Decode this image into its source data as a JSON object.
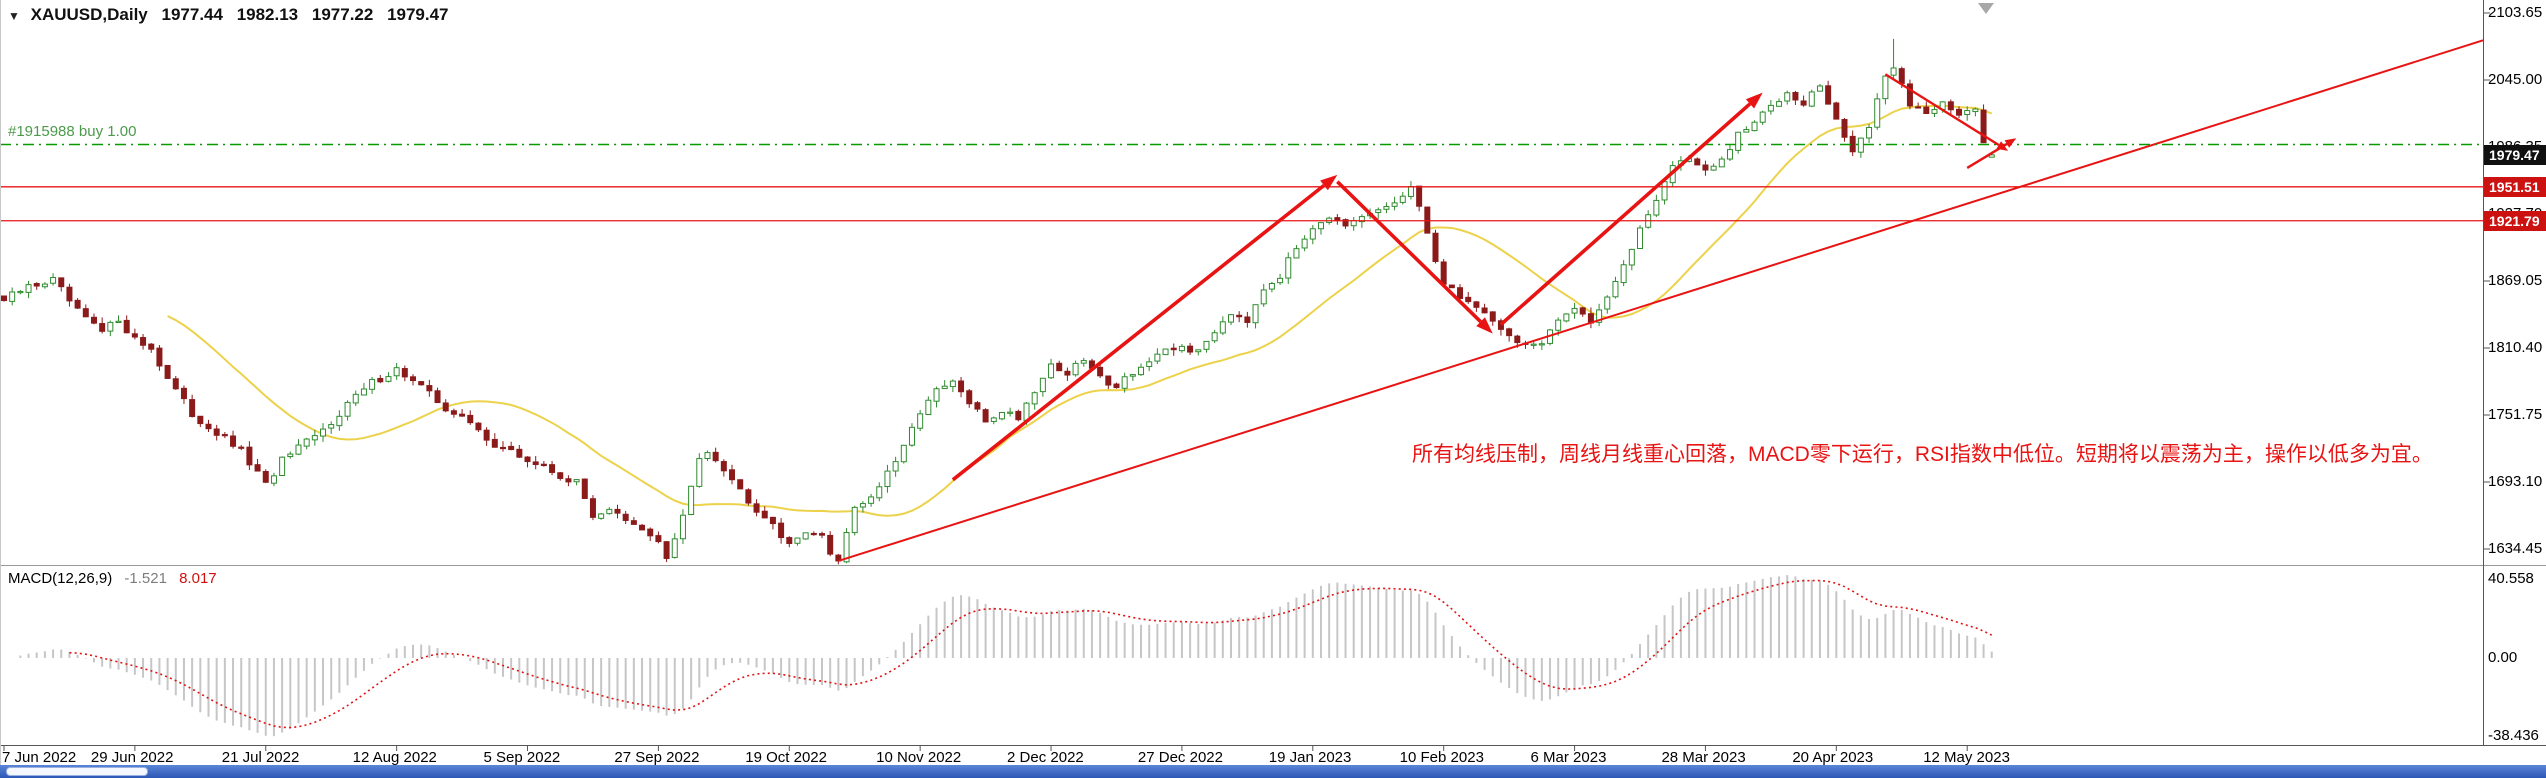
{
  "quote": {
    "collapse_icon": "▼",
    "symbol_period": "XAUUSD,Daily",
    "open": "1977.44",
    "high": "1982.13",
    "low": "1977.22",
    "close": "1979.47"
  },
  "position": {
    "label": "#1915988 buy 1.00",
    "price": 1988.5
  },
  "annotation": {
    "text": "所有均线压制，周线月线重心回落，MACD零下运行，RSI指数中低位。短期将以震荡为主，操作以低多为宜。"
  },
  "price_axis": {
    "labels": [
      "2103.65",
      "2045.00",
      "1986.35",
      "1927.70",
      "1869.05",
      "1810.40",
      "1751.75",
      "1693.10",
      "1634.45"
    ]
  },
  "date_axis": {
    "labels": [
      "7 Jun 2022",
      "29 Jun 2022",
      "21 Jul 2022",
      "12 Aug 2022",
      "5 Sep 2022",
      "27 Sep 2022",
      "19 Oct 2022",
      "10 Nov 2022",
      "2 Dec 2022",
      "27 Dec 2022",
      "19 Jan 2023",
      "10 Feb 2023",
      "6 Mar 2023",
      "28 Mar 2023",
      "20 Apr 2023",
      "12 May 2023"
    ]
  },
  "badges": [
    {
      "text": "1979.47",
      "price": 1979.47,
      "bg": "#101010"
    },
    {
      "text": "1951.51",
      "price": 1951.51,
      "bg": "#cc1111"
    },
    {
      "text": "1921.79",
      "price": 1921.79,
      "bg": "#cc1111"
    }
  ],
  "macd": {
    "label": "MACD(12,26,9)",
    "main_value": "-1.521",
    "signal_value": "8.017",
    "axis_labels": [
      "40.558",
      "0.00",
      "-38.436"
    ]
  },
  "colors": {
    "bull": "#2e8b2e",
    "bear": "#8b1a1a",
    "ma": "#ecd24a",
    "object_red": "#e81414",
    "buy_line": "#089b00",
    "macd_hist": "#c6c6c6",
    "macd_signal": "#e01414",
    "separator": "#999999"
  },
  "chart_data": [
    {
      "type": "candlestick",
      "title": "XAUUSD Daily",
      "candle_count": 244,
      "ylim": [
        1620,
        2110
      ],
      "y_ticks": [
        2103.65,
        2045.0,
        1986.35,
        1927.7,
        1869.05,
        1810.4,
        1751.75,
        1693.1,
        1634.45
      ],
      "x_tick_labels": [
        "7 Jun 2022",
        "29 Jun 2022",
        "21 Jul 2022",
        "12 Aug 2022",
        "5 Sep 2022",
        "27 Sep 2022",
        "19 Oct 2022",
        "10 Nov 2022",
        "2 Dec 2022",
        "27 Dec 2022",
        "19 Jan 2023",
        "10 Feb 2023",
        "6 Mar 2023",
        "28 Mar 2023",
        "20 Apr 2023",
        "12 May 2023"
      ],
      "anchors": [
        [
          0,
          1852
        ],
        [
          3,
          1864
        ],
        [
          6,
          1870
        ],
        [
          9,
          1842
        ],
        [
          12,
          1824
        ],
        [
          14,
          1836
        ],
        [
          16,
          1818
        ],
        [
          18,
          1810
        ],
        [
          20,
          1784
        ],
        [
          23,
          1752
        ],
        [
          26,
          1736
        ],
        [
          29,
          1720
        ],
        [
          32,
          1690
        ],
        [
          34,
          1712
        ],
        [
          36,
          1722
        ],
        [
          39,
          1738
        ],
        [
          42,
          1762
        ],
        [
          45,
          1780
        ],
        [
          48,
          1792
        ],
        [
          51,
          1776
        ],
        [
          54,
          1758
        ],
        [
          57,
          1744
        ],
        [
          60,
          1726
        ],
        [
          64,
          1712
        ],
        [
          67,
          1702
        ],
        [
          70,
          1692
        ],
        [
          72,
          1664
        ],
        [
          74,
          1670
        ],
        [
          76,
          1658
        ],
        [
          78,
          1650
        ],
        [
          80,
          1643
        ],
        [
          81,
          1625
        ],
        [
          83,
          1662
        ],
        [
          85,
          1714
        ],
        [
          86,
          1722
        ],
        [
          88,
          1706
        ],
        [
          90,
          1686
        ],
        [
          92,
          1670
        ],
        [
          94,
          1658
        ],
        [
          96,
          1636
        ],
        [
          98,
          1652
        ],
        [
          100,
          1644
        ],
        [
          101,
          1630
        ],
        [
          102,
          1626
        ],
        [
          104,
          1672
        ],
        [
          106,
          1680
        ],
        [
          108,
          1700
        ],
        [
          110,
          1722
        ],
        [
          112,
          1756
        ],
        [
          114,
          1772
        ],
        [
          116,
          1780
        ],
        [
          118,
          1762
        ],
        [
          120,
          1746
        ],
        [
          122,
          1756
        ],
        [
          124,
          1750
        ],
        [
          126,
          1774
        ],
        [
          128,
          1796
        ],
        [
          130,
          1788
        ],
        [
          132,
          1800
        ],
        [
          134,
          1784
        ],
        [
          136,
          1778
        ],
        [
          138,
          1790
        ],
        [
          140,
          1798
        ],
        [
          142,
          1806
        ],
        [
          144,
          1812
        ],
        [
          146,
          1806
        ],
        [
          148,
          1826
        ],
        [
          150,
          1842
        ],
        [
          152,
          1836
        ],
        [
          154,
          1864
        ],
        [
          156,
          1874
        ],
        [
          158,
          1898
        ],
        [
          160,
          1918
        ],
        [
          162,
          1926
        ],
        [
          164,
          1914
        ],
        [
          166,
          1924
        ],
        [
          168,
          1930
        ],
        [
          170,
          1938
        ],
        [
          172,
          1950
        ],
        [
          174,
          1912
        ],
        [
          176,
          1866
        ],
        [
          178,
          1856
        ],
        [
          180,
          1846
        ],
        [
          182,
          1836
        ],
        [
          184,
          1820
        ],
        [
          186,
          1814
        ],
        [
          188,
          1812
        ],
        [
          190,
          1834
        ],
        [
          192,
          1848
        ],
        [
          194,
          1834
        ],
        [
          196,
          1856
        ],
        [
          198,
          1880
        ],
        [
          200,
          1916
        ],
        [
          202,
          1942
        ],
        [
          204,
          1970
        ],
        [
          206,
          1978
        ],
        [
          208,
          1964
        ],
        [
          210,
          1974
        ],
        [
          212,
          1996
        ],
        [
          214,
          2008
        ],
        [
          216,
          2022
        ],
        [
          218,
          2036
        ],
        [
          220,
          2026
        ],
        [
          222,
          2040
        ],
        [
          224,
          2008
        ],
        [
          226,
          1984
        ],
        [
          228,
          2004
        ],
        [
          230,
          2046
        ],
        [
          231,
          2058
        ],
        [
          233,
          2024
        ],
        [
          235,
          2016
        ],
        [
          237,
          2028
        ],
        [
          239,
          2014
        ],
        [
          241,
          2018
        ],
        [
          242,
          1990
        ],
        [
          243,
          1979.47
        ]
      ],
      "wick_overrides": [
        {
          "i": 81,
          "low": 1623
        },
        {
          "i": 102,
          "low": 1621
        },
        {
          "i": 231,
          "high": 2081
        }
      ],
      "last_candle": {
        "open": 1977.44,
        "high": 1982.13,
        "low": 1977.22,
        "close": 1979.47
      },
      "moving_average": {
        "period": 21
      },
      "objects": {
        "trendline": {
          "from": [
            102,
            1624
          ],
          "to": [
            192,
            1828
          ],
          "extend_right": true
        },
        "arrows": [
          {
            "from": [
              116,
              1695
            ],
            "to": [
              163,
              1962
            ],
            "thick": true
          },
          {
            "from": [
              163,
              1956
            ],
            "to": [
              182,
              1823
            ],
            "thick": true
          },
          {
            "from": [
              183,
              1831
            ],
            "to": [
              215,
              2034
            ],
            "thick": true
          },
          {
            "from": [
              230,
              2050
            ],
            "to": [
              245,
              1983
            ],
            "thick": false
          },
          {
            "from": [
              240,
              1968
            ],
            "to": [
              246,
              1994
            ],
            "thick": false
          }
        ],
        "hlines": [
          {
            "price": 1951.51
          },
          {
            "price": 1921.79
          }
        ],
        "buy_line_price": 1988.5
      }
    },
    {
      "type": "bar",
      "name": "MACD(12,26,9)",
      "params": [
        12,
        26,
        9
      ],
      "current_main": -1.521,
      "current_signal": 8.017,
      "y_ticks": [
        40.558,
        0.0,
        -38.436
      ],
      "derived": "histogram and signal computed from candlestick closes"
    }
  ]
}
